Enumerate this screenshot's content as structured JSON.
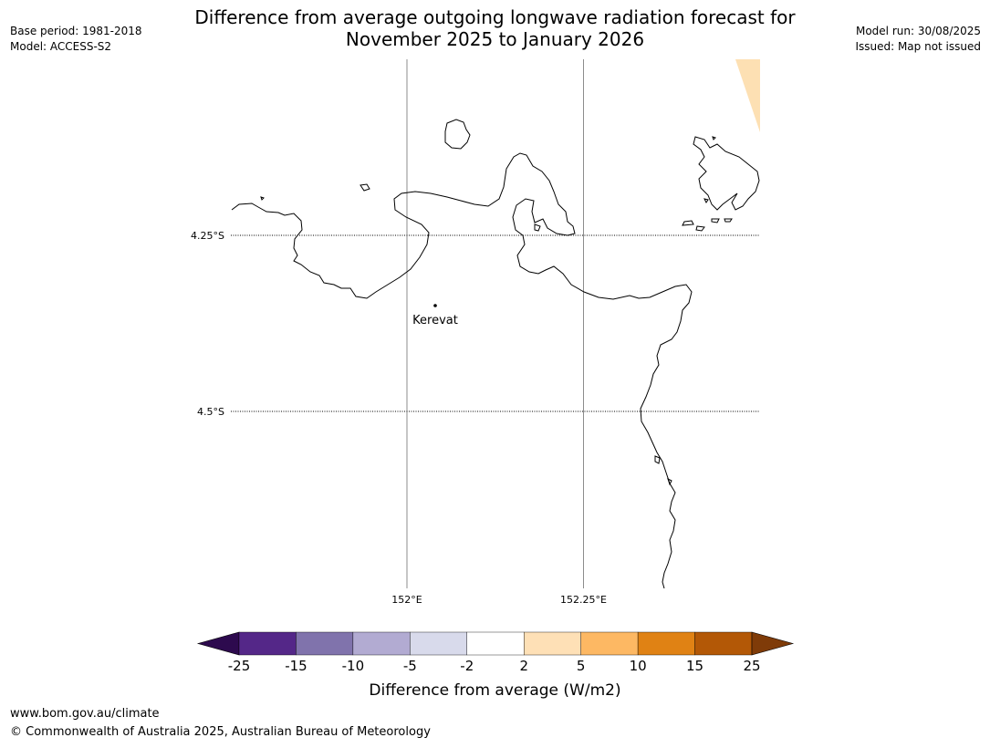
{
  "header": {
    "title_line1": "Difference from average outgoing longwave radiation forecast for",
    "title_line2": "November 2025 to January 2026",
    "base_period": "Base period: 1981-2018",
    "model": "Model: ACCESS-S2",
    "model_run": "Model run: 30/08/2025",
    "issued": "Issued: Map not issued"
  },
  "map": {
    "lat_labels": [
      "4.25°S",
      "4.5°S"
    ],
    "lon_labels": [
      "152°E",
      "152.25°E"
    ],
    "place": {
      "name": "Kerevat"
    },
    "fill_color_top_right": "#fde0b3",
    "coastline_color": "#000000"
  },
  "legend": {
    "ticks": [
      "-25",
      "-15",
      "-10",
      "-5",
      "-2",
      "2",
      "5",
      "10",
      "15",
      "25"
    ],
    "colors": [
      "#2d0a4e",
      "#542788",
      "#8073ac",
      "#b2abd2",
      "#d8daeb",
      "#ffffff",
      "#fee0b6",
      "#fdb863",
      "#e08214",
      "#b35806",
      "#7f3b08"
    ],
    "label": "Difference from average (W/m2)"
  },
  "footer": {
    "url": "www.bom.gov.au/climate",
    "copyright": "© Commonwealth of Australia 2025, Australian Bureau of Meteorology"
  }
}
